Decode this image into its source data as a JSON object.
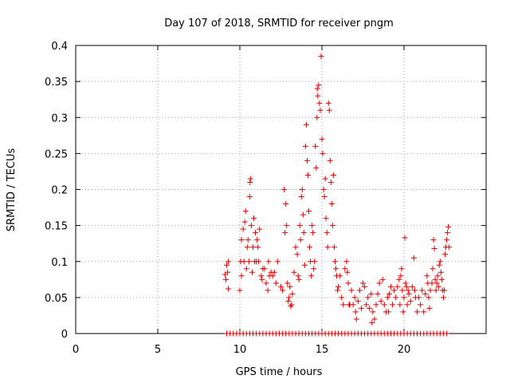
{
  "chart_data": {
    "type": "scatter",
    "title": "Day 107 of 2018, SRMTID for receiver pngm",
    "xlabel": "GPS time / hours",
    "ylabel": "SRMTID / TECUs",
    "xlim": [
      0,
      25
    ],
    "ylim": [
      0,
      0.4
    ],
    "xticks": [
      0,
      5,
      10,
      15,
      20
    ],
    "xtick_labels": [
      "0",
      "5",
      "10",
      "15",
      "20"
    ],
    "yticks": [
      0,
      0.05,
      0.1,
      0.15,
      0.2,
      0.25,
      0.3,
      0.35,
      0.4
    ],
    "ytick_labels": [
      "0",
      "0.05",
      "0.1",
      "0.15",
      "0.2",
      "0.25",
      "0.3",
      "0.35",
      "0.4"
    ],
    "grid": true,
    "marker": "plus",
    "marker_color": "#e00000",
    "series": [
      {
        "name": "SRMTID",
        "points": [
          [
            9.1,
            0.082
          ],
          [
            9.15,
            0.075
          ],
          [
            9.2,
            0.095
          ],
          [
            9.25,
            0.085
          ],
          [
            9.3,
            0.062
          ],
          [
            9.3,
            0.1
          ],
          [
            10.0,
            0.06
          ],
          [
            10.05,
            0.1
          ],
          [
            10.1,
            0.08
          ],
          [
            10.1,
            0.13
          ],
          [
            10.2,
            0.145
          ],
          [
            10.25,
            0.1
          ],
          [
            10.3,
            0.155
          ],
          [
            10.35,
            0.17
          ],
          [
            10.4,
            0.09
          ],
          [
            10.45,
            0.12
          ],
          [
            10.5,
            0.13
          ],
          [
            10.55,
            0.1
          ],
          [
            10.6,
            0.19
          ],
          [
            10.62,
            0.21
          ],
          [
            10.65,
            0.215
          ],
          [
            10.7,
            0.15
          ],
          [
            10.75,
            0.085
          ],
          [
            10.8,
            0.12
          ],
          [
            10.85,
            0.16
          ],
          [
            10.9,
            0.1
          ],
          [
            10.95,
            0.14
          ],
          [
            11.0,
            0.1
          ],
          [
            11.05,
            0.13
          ],
          [
            11.1,
            0.12
          ],
          [
            11.15,
            0.1
          ],
          [
            11.2,
            0.145
          ],
          [
            11.3,
            0.08
          ],
          [
            11.35,
            0.075
          ],
          [
            11.4,
            0.09
          ],
          [
            11.5,
            0.09
          ],
          [
            11.6,
            0.07
          ],
          [
            11.7,
            0.06
          ],
          [
            11.75,
            0.1
          ],
          [
            11.8,
            0.08
          ],
          [
            11.9,
            0.085
          ],
          [
            12.0,
            0.08
          ],
          [
            12.1,
            0.085
          ],
          [
            12.2,
            0.07
          ],
          [
            12.3,
            0.1
          ],
          [
            12.5,
            0.065
          ],
          [
            12.6,
            0.06
          ],
          [
            12.7,
            0.2
          ],
          [
            12.75,
            0.14
          ],
          [
            12.8,
            0.18
          ],
          [
            12.85,
            0.15
          ],
          [
            12.9,
            0.07
          ],
          [
            12.95,
            0.045
          ],
          [
            13.0,
            0.05
          ],
          [
            13.05,
            0.065
          ],
          [
            13.1,
            0.038
          ],
          [
            13.15,
            0.04
          ],
          [
            13.2,
            0.055
          ],
          [
            13.3,
            0.085
          ],
          [
            13.4,
            0.12
          ],
          [
            13.5,
            0.11
          ],
          [
            13.55,
            0.08
          ],
          [
            13.6,
            0.075
          ],
          [
            13.65,
            0.15
          ],
          [
            13.7,
            0.13
          ],
          [
            13.75,
            0.19
          ],
          [
            13.8,
            0.2
          ],
          [
            13.85,
            0.165
          ],
          [
            13.9,
            0.14
          ],
          [
            13.95,
            0.095
          ],
          [
            14.0,
            0.26
          ],
          [
            14.05,
            0.29
          ],
          [
            14.1,
            0.24
          ],
          [
            14.15,
            0.22
          ],
          [
            14.2,
            0.17
          ],
          [
            14.25,
            0.12
          ],
          [
            14.3,
            0.1
          ],
          [
            14.35,
            0.08
          ],
          [
            14.4,
            0.15
          ],
          [
            14.45,
            0.14
          ],
          [
            14.5,
            0.09
          ],
          [
            14.55,
            0.1
          ],
          [
            14.6,
            0.26
          ],
          [
            14.65,
            0.23
          ],
          [
            14.7,
            0.3
          ],
          [
            14.72,
            0.34
          ],
          [
            14.75,
            0.33
          ],
          [
            14.8,
            0.345
          ],
          [
            14.85,
            0.32
          ],
          [
            14.9,
            0.31
          ],
          [
            14.95,
            0.385
          ],
          [
            15.0,
            0.27
          ],
          [
            15.05,
            0.25
          ],
          [
            15.1,
            0.2
          ],
          [
            15.15,
            0.19
          ],
          [
            15.2,
            0.215
          ],
          [
            15.25,
            0.16
          ],
          [
            15.3,
            0.14
          ],
          [
            15.35,
            0.12
          ],
          [
            15.4,
            0.32
          ],
          [
            15.45,
            0.31
          ],
          [
            15.5,
            0.24
          ],
          [
            15.55,
            0.21
          ],
          [
            15.6,
            0.18
          ],
          [
            15.65,
            0.15
          ],
          [
            15.7,
            0.22
          ],
          [
            15.75,
            0.12
          ],
          [
            15.8,
            0.1
          ],
          [
            15.85,
            0.09
          ],
          [
            15.9,
            0.08
          ],
          [
            15.95,
            0.06
          ],
          [
            16.0,
            0.065
          ],
          [
            16.1,
            0.08
          ],
          [
            16.2,
            0.05
          ],
          [
            16.3,
            0.04
          ],
          [
            16.4,
            0.09
          ],
          [
            16.5,
            0.1
          ],
          [
            16.55,
            0.085
          ],
          [
            16.6,
            0.07
          ],
          [
            16.65,
            0.04
          ],
          [
            16.7,
            0.04
          ],
          [
            16.8,
            0.06
          ],
          [
            16.9,
            0.04
          ],
          [
            17.0,
            0.05
          ],
          [
            17.05,
            0.03
          ],
          [
            17.1,
            0.02
          ],
          [
            17.2,
            0.045
          ],
          [
            17.3,
            0.06
          ],
          [
            17.4,
            0.035
          ],
          [
            17.5,
            0.07
          ],
          [
            17.6,
            0.065
          ],
          [
            17.7,
            0.04
          ],
          [
            17.8,
            0.05
          ],
          [
            17.9,
            0.035
          ],
          [
            18.0,
            0.055
          ],
          [
            18.05,
            0.015
          ],
          [
            18.1,
            0.03
          ],
          [
            18.2,
            0.02
          ],
          [
            18.3,
            0.04
          ],
          [
            18.4,
            0.055
          ],
          [
            18.5,
            0.07
          ],
          [
            18.6,
            0.045
          ],
          [
            18.7,
            0.075
          ],
          [
            18.8,
            0.04
          ],
          [
            18.9,
            0.03
          ],
          [
            19.0,
            0.05
          ],
          [
            19.05,
            0.03
          ],
          [
            19.1,
            0.055
          ],
          [
            19.2,
            0.065
          ],
          [
            19.3,
            0.04
          ],
          [
            19.4,
            0.06
          ],
          [
            19.5,
            0.05
          ],
          [
            19.6,
            0.065
          ],
          [
            19.7,
            0.075
          ],
          [
            19.75,
            0.04
          ],
          [
            19.8,
            0.08
          ],
          [
            19.85,
            0.09
          ],
          [
            19.9,
            0.06
          ],
          [
            19.95,
            0.03
          ],
          [
            20.0,
            0.05
          ],
          [
            20.05,
            0.133
          ],
          [
            20.1,
            0.07
          ],
          [
            20.15,
            0.065
          ],
          [
            20.2,
            0.04
          ],
          [
            20.25,
            0.06
          ],
          [
            20.3,
            0.055
          ],
          [
            20.4,
            0.045
          ],
          [
            20.5,
            0.065
          ],
          [
            20.6,
            0.105
          ],
          [
            20.65,
            0.06
          ],
          [
            20.7,
            0.05
          ],
          [
            20.8,
            0.03
          ],
          [
            20.9,
            0.05
          ],
          [
            21.0,
            0.04
          ],
          [
            21.1,
            0.06
          ],
          [
            21.2,
            0.03
          ],
          [
            21.3,
            0.055
          ],
          [
            21.4,
            0.08
          ],
          [
            21.45,
            0.07
          ],
          [
            21.5,
            0.05
          ],
          [
            21.55,
            0.035
          ],
          [
            21.6,
            0.06
          ],
          [
            21.7,
            0.07
          ],
          [
            21.75,
            0.09
          ],
          [
            21.8,
            0.13
          ],
          [
            21.85,
            0.118
          ],
          [
            21.9,
            0.075
          ],
          [
            21.95,
            0.06
          ],
          [
            22.0,
            0.07
          ],
          [
            22.05,
            0.08
          ],
          [
            22.1,
            0.065
          ],
          [
            22.15,
            0.095
          ],
          [
            22.2,
            0.1
          ],
          [
            22.25,
            0.085
          ],
          [
            22.3,
            0.075
          ],
          [
            22.35,
            0.06
          ],
          [
            22.4,
            0.05
          ],
          [
            22.45,
            0.06
          ],
          [
            22.5,
            0.11
          ],
          [
            22.55,
            0.12
          ],
          [
            22.6,
            0.13
          ],
          [
            22.65,
            0.14
          ],
          [
            22.7,
            0.148
          ],
          [
            22.75,
            0.12
          ],
          [
            9.2,
            0.0
          ],
          [
            9.4,
            0.0
          ],
          [
            9.6,
            0.0
          ],
          [
            9.8,
            0.0
          ],
          [
            10.0,
            0.0
          ],
          [
            10.2,
            0.0
          ],
          [
            10.4,
            0.0
          ],
          [
            10.6,
            0.0
          ],
          [
            10.8,
            0.0
          ],
          [
            11.0,
            0.0
          ],
          [
            11.2,
            0.0
          ],
          [
            11.4,
            0.0
          ],
          [
            11.6,
            0.0
          ],
          [
            11.8,
            0.0
          ],
          [
            12.0,
            0.0
          ],
          [
            12.2,
            0.0
          ],
          [
            12.4,
            0.0
          ],
          [
            12.6,
            0.0
          ],
          [
            12.8,
            0.0
          ],
          [
            13.0,
            0.0
          ],
          [
            13.2,
            0.0
          ],
          [
            13.4,
            0.0
          ],
          [
            13.6,
            0.0
          ],
          [
            13.8,
            0.0
          ],
          [
            14.0,
            0.0
          ],
          [
            14.2,
            0.0
          ],
          [
            14.4,
            0.0
          ],
          [
            14.6,
            0.0
          ],
          [
            14.8,
            0.0
          ],
          [
            15.0,
            0.0
          ],
          [
            15.2,
            0.0
          ],
          [
            15.4,
            0.0
          ],
          [
            15.6,
            0.0
          ],
          [
            15.8,
            0.0
          ],
          [
            16.0,
            0.0
          ],
          [
            16.2,
            0.0
          ],
          [
            16.4,
            0.0
          ],
          [
            16.6,
            0.0
          ],
          [
            16.8,
            0.0
          ],
          [
            17.0,
            0.0
          ],
          [
            17.2,
            0.0
          ],
          [
            17.4,
            0.0
          ],
          [
            17.6,
            0.0
          ],
          [
            17.8,
            0.0
          ],
          [
            18.0,
            0.0
          ],
          [
            18.2,
            0.0
          ],
          [
            18.4,
            0.0
          ],
          [
            18.6,
            0.0
          ],
          [
            18.8,
            0.0
          ],
          [
            19.0,
            0.0
          ],
          [
            19.2,
            0.0
          ],
          [
            19.4,
            0.0
          ],
          [
            19.6,
            0.0
          ],
          [
            19.8,
            0.0
          ],
          [
            20.0,
            0.0
          ],
          [
            20.2,
            0.0
          ],
          [
            20.4,
            0.0
          ],
          [
            20.6,
            0.0
          ],
          [
            20.8,
            0.0
          ],
          [
            21.0,
            0.0
          ],
          [
            21.2,
            0.0
          ],
          [
            21.4,
            0.0
          ],
          [
            21.6,
            0.0
          ],
          [
            21.8,
            0.0
          ],
          [
            22.0,
            0.0
          ],
          [
            22.2,
            0.0
          ],
          [
            22.4,
            0.0
          ],
          [
            22.6,
            0.0
          ]
        ]
      }
    ]
  }
}
